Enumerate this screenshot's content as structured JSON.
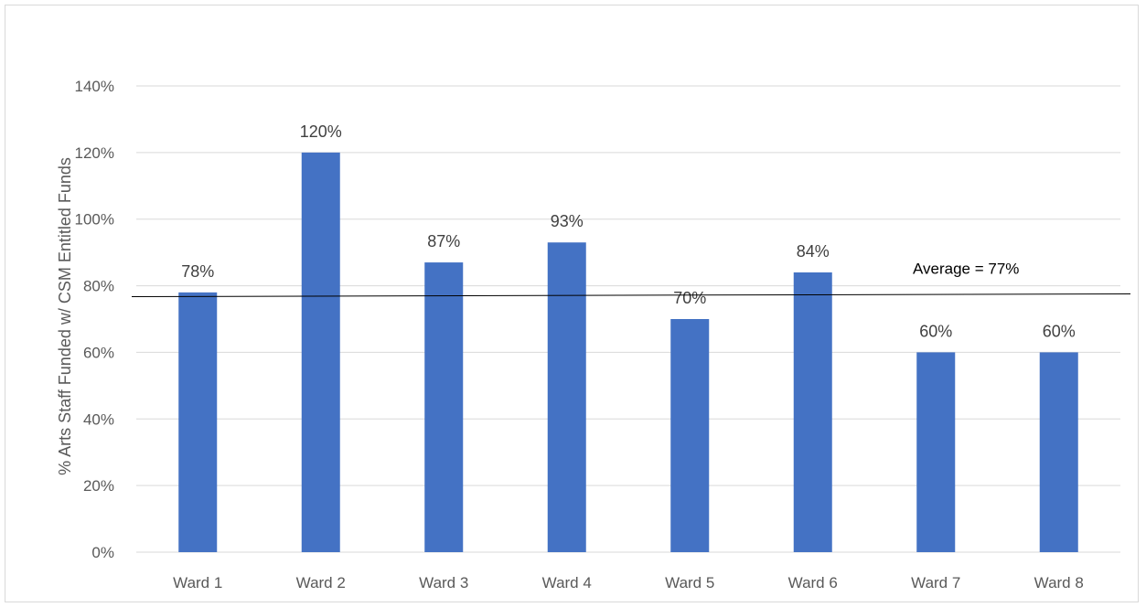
{
  "chart_data": {
    "type": "bar",
    "categories": [
      "Ward 1",
      "Ward 2",
      "Ward 3",
      "Ward 4",
      "Ward 5",
      "Ward 6",
      "Ward 7",
      "Ward 8"
    ],
    "values": [
      78,
      120,
      87,
      93,
      70,
      84,
      60,
      60
    ],
    "data_labels": [
      "78%",
      "120%",
      "87%",
      "93%",
      "70%",
      "84%",
      "60%",
      "60%"
    ],
    "ylabel": "% Arts Staff Funded w/ CSM Entitled Funds",
    "xlabel": "",
    "ylim": [
      0,
      140
    ],
    "yticks": [
      "0%",
      "20%",
      "40%",
      "60%",
      "80%",
      "100%",
      "120%",
      "140%"
    ],
    "average": {
      "value": 77,
      "label": "Average = 77%"
    },
    "bar_color": "#4472c4",
    "grid": true,
    "legend": "none"
  }
}
